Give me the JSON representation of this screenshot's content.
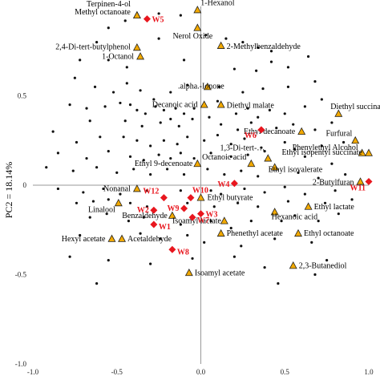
{
  "chart_data": {
    "type": "scatter",
    "ylabel": "PC2 = 18.14%",
    "xlim": [
      -1.0,
      1.0
    ],
    "ylim": [
      -1.0,
      1.0
    ],
    "x_ticks": [
      {
        "value": -1.0,
        "label": "-1.0"
      },
      {
        "value": -0.5,
        "label": "-0.5"
      },
      {
        "value": 0.0,
        "label": "0.0"
      },
      {
        "value": 0.5,
        "label": "0.5"
      },
      {
        "value": 1.0,
        "label": "1.0"
      }
    ],
    "y_ticks": [
      {
        "value": 0.5,
        "label": "0.5"
      },
      {
        "value": 0.0,
        "label": "0"
      },
      {
        "value": -0.5,
        "label": "-0.5"
      },
      {
        "value": -1.0,
        "label": "-1.0"
      }
    ],
    "colors": {
      "sample_marker": "#e8161e",
      "sample_label": "#e8161e",
      "compound_fill": "#f2a900",
      "compound_stroke": "#222222",
      "variable_dot": "#111111",
      "axis": "#999999"
    },
    "samples": [
      {
        "name": "W1",
        "x": -0.28,
        "y": -0.22
      },
      {
        "name": "W2",
        "x": -0.28,
        "y": -0.14
      },
      {
        "name": "W3",
        "x": 0.0,
        "y": -0.16
      },
      {
        "name": "W4",
        "x": 0.2,
        "y": 0.01
      },
      {
        "name": "W5",
        "x": -0.32,
        "y": 0.93
      },
      {
        "name": "W6",
        "x": 0.36,
        "y": 0.31
      },
      {
        "name": "W7",
        "x": -0.05,
        "y": -0.18
      },
      {
        "name": "W8",
        "x": -0.17,
        "y": -0.36
      },
      {
        "name": "W9",
        "x": -0.1,
        "y": -0.13
      },
      {
        "name": "W10",
        "x": -0.06,
        "y": -0.07
      },
      {
        "name": "W11",
        "x": 1.0,
        "y": 0.02
      },
      {
        "name": "W12",
        "x": -0.22,
        "y": -0.07
      }
    ],
    "compounds": [
      {
        "name": "Terpinen-4-ol",
        "x": -0.38,
        "y": 0.95
      },
      {
        "name": "Methyl octanoate",
        "x": -0.38,
        "y": 0.95
      },
      {
        "name": "1-Hexanol",
        "x": -0.02,
        "y": 0.98
      },
      {
        "name": "Nerol Oxide",
        "x": -0.02,
        "y": 0.88
      },
      {
        "name": "2-Methylbenzaldehyde",
        "x": 0.12,
        "y": 0.78
      },
      {
        "name": "2,4-Di-tert-butylphenol",
        "x": -0.38,
        "y": 0.77
      },
      {
        "name": "1-Octanol",
        "x": -0.36,
        "y": 0.72
      },
      {
        "name": ".alpha.-Ionone",
        "x": 0.04,
        "y": 0.55
      },
      {
        "name": "Decanoic acid",
        "x": 0.02,
        "y": 0.45
      },
      {
        "name": "Diethyl malate",
        "x": 0.12,
        "y": 0.45
      },
      {
        "name": "Diethyl succinate",
        "x": 0.82,
        "y": 0.4
      },
      {
        "name": "Ethyl decanoate",
        "x": 0.6,
        "y": 0.3
      },
      {
        "name": "Furfural",
        "x": 0.92,
        "y": 0.25
      },
      {
        "name": "Phenylethyl Alcohol",
        "x": 0.96,
        "y": 0.18
      },
      {
        "name": "Ethyl isopentyl succinate",
        "x": 1.0,
        "y": 0.18
      },
      {
        "name": "1,3-Di-tert-…",
        "x": 0.4,
        "y": 0.15
      },
      {
        "name": "Ethyl 9-decenoate",
        "x": -0.02,
        "y": 0.12
      },
      {
        "name": "Octanoic acid",
        "x": 0.3,
        "y": 0.12
      },
      {
        "name": "Ethyl isovalerate",
        "x": 0.44,
        "y": 0.1
      },
      {
        "name": "2-Butylfuran",
        "x": 0.95,
        "y": 0.02
      },
      {
        "name": "Nonanal",
        "x": -0.38,
        "y": -0.02
      },
      {
        "name": "Linalool",
        "x": -0.49,
        "y": -0.1
      },
      {
        "name": "Ethyl butyrate",
        "x": 0.0,
        "y": -0.07
      },
      {
        "name": "Ethyl lactate",
        "x": 0.64,
        "y": -0.12
      },
      {
        "name": "Benzaldehyde",
        "x": -0.17,
        "y": -0.17
      },
      {
        "name": "Hexanoic acid",
        "x": 0.44,
        "y": -0.15
      },
      {
        "name": "Isoamyl lactate",
        "x": 0.14,
        "y": -0.2
      },
      {
        "name": "Hexyl acetate",
        "x": -0.53,
        "y": -0.3
      },
      {
        "name": "Acetaldehyde",
        "x": -0.47,
        "y": -0.3
      },
      {
        "name": "Phenethyl acetate",
        "x": 0.12,
        "y": -0.27
      },
      {
        "name": "Ethyl octanoate",
        "x": 0.58,
        "y": -0.27
      },
      {
        "name": "Isoamyl acetate",
        "x": -0.07,
        "y": -0.49
      },
      {
        "name": "2,3-Butanediol",
        "x": 0.55,
        "y": -0.45
      }
    ],
    "variables": [
      [
        -0.45,
        0.92
      ],
      [
        -0.25,
        0.96
      ],
      [
        -0.12,
        0.95
      ],
      [
        -0.02,
        0.88
      ],
      [
        0.03,
        0.84
      ],
      [
        0.15,
        0.82
      ],
      [
        0.25,
        0.8
      ],
      [
        0.34,
        0.77
      ],
      [
        0.42,
        0.75
      ],
      [
        -0.55,
        0.88
      ],
      [
        -0.62,
        0.8
      ],
      [
        -0.72,
        0.7
      ],
      [
        -0.55,
        0.7
      ],
      [
        -0.44,
        0.66
      ],
      [
        -0.25,
        0.82
      ],
      [
        -0.1,
        0.7
      ],
      [
        0.2,
        0.65
      ],
      [
        0.33,
        0.64
      ],
      [
        0.42,
        0.69
      ],
      [
        0.52,
        0.66
      ],
      [
        0.64,
        0.72
      ],
      [
        -0.75,
        0.6
      ],
      [
        -0.63,
        0.55
      ],
      [
        -0.52,
        0.52
      ],
      [
        -0.44,
        0.57
      ],
      [
        -0.36,
        0.53
      ],
      [
        -0.28,
        0.48
      ],
      [
        -0.18,
        0.52
      ],
      [
        -0.08,
        0.56
      ],
      [
        0.11,
        0.55
      ],
      [
        0.25,
        0.52
      ],
      [
        0.37,
        0.54
      ],
      [
        0.52,
        0.55
      ],
      [
        0.68,
        0.58
      ],
      [
        -0.78,
        0.45
      ],
      [
        -0.68,
        0.43
      ],
      [
        -0.57,
        0.44
      ],
      [
        -0.48,
        0.46
      ],
      [
        -0.42,
        0.45
      ],
      [
        -0.38,
        0.42
      ],
      [
        -0.33,
        0.4
      ],
      [
        -0.27,
        0.44
      ],
      [
        -0.22,
        0.42
      ],
      [
        -0.15,
        0.43
      ],
      [
        -0.1,
        0.4
      ],
      [
        -0.04,
        0.43
      ],
      [
        0.1,
        0.47
      ],
      [
        0.21,
        0.4
      ],
      [
        0.28,
        0.43
      ],
      [
        0.34,
        0.38
      ],
      [
        0.41,
        0.42
      ],
      [
        0.5,
        0.4
      ],
      [
        0.62,
        0.44
      ],
      [
        0.72,
        0.48
      ],
      [
        -0.66,
        0.36
      ],
      [
        -0.45,
        0.36
      ],
      [
        -0.35,
        0.33
      ],
      [
        -0.24,
        0.35
      ],
      [
        -0.18,
        0.37
      ],
      [
        -0.13,
        0.33
      ],
      [
        -0.05,
        0.37
      ],
      [
        0.05,
        0.38
      ],
      [
        0.12,
        0.34
      ],
      [
        0.22,
        0.31
      ],
      [
        0.3,
        0.35
      ],
      [
        0.45,
        0.32
      ],
      [
        0.55,
        0.34
      ],
      [
        0.68,
        0.31
      ],
      [
        0.78,
        0.35
      ],
      [
        -0.88,
        0.3
      ],
      [
        -0.74,
        0.24
      ],
      [
        -0.6,
        0.27
      ],
      [
        -0.46,
        0.27
      ],
      [
        -0.38,
        0.25
      ],
      [
        -0.3,
        0.22
      ],
      [
        -0.22,
        0.25
      ],
      [
        -0.14,
        0.23
      ],
      [
        -0.08,
        0.27
      ],
      [
        0.02,
        0.25
      ],
      [
        0.1,
        0.28
      ],
      [
        0.18,
        0.23
      ],
      [
        0.26,
        0.26
      ],
      [
        0.36,
        0.21
      ],
      [
        0.5,
        0.24
      ],
      [
        0.56,
        0.2
      ],
      [
        0.72,
        0.22
      ],
      [
        0.85,
        0.24
      ],
      [
        -0.85,
        0.18
      ],
      [
        -0.68,
        0.15
      ],
      [
        -0.55,
        0.19
      ],
      [
        -0.42,
        0.16
      ],
      [
        -0.34,
        0.14
      ],
      [
        -0.25,
        0.17
      ],
      [
        -0.18,
        0.15
      ],
      [
        -0.12,
        0.18
      ],
      [
        -0.04,
        0.15
      ],
      [
        0.06,
        0.18
      ],
      [
        0.18,
        0.16
      ],
      [
        0.28,
        0.17
      ],
      [
        0.38,
        0.19
      ],
      [
        0.62,
        0.16
      ],
      [
        0.78,
        0.12
      ],
      [
        -0.92,
        0.1
      ],
      [
        -0.76,
        0.08
      ],
      [
        -0.62,
        0.1
      ],
      [
        -0.5,
        0.07
      ],
      [
        -0.4,
        0.09
      ],
      [
        -0.3,
        0.06
      ],
      [
        -0.2,
        0.09
      ],
      [
        -0.1,
        0.06
      ],
      [
        0.04,
        0.09
      ],
      [
        0.14,
        0.06
      ],
      [
        0.24,
        0.08
      ],
      [
        0.34,
        0.05
      ],
      [
        0.58,
        0.07
      ],
      [
        0.7,
        0.04
      ],
      [
        0.86,
        0.06
      ],
      [
        -0.85,
        -0.02
      ],
      [
        -0.7,
        -0.04
      ],
      [
        -0.58,
        -0.02
      ],
      [
        -0.48,
        -0.05
      ],
      [
        -0.32,
        -0.03
      ],
      [
        -0.12,
        -0.03
      ],
      [
        0.06,
        -0.03
      ],
      [
        0.12,
        -0.05
      ],
      [
        0.26,
        -0.02
      ],
      [
        0.38,
        -0.04
      ],
      [
        0.5,
        -0.01
      ],
      [
        0.62,
        -0.05
      ],
      [
        0.8,
        -0.03
      ],
      [
        -0.74,
        -0.1
      ],
      [
        -0.64,
        -0.09
      ],
      [
        -0.55,
        -0.08
      ],
      [
        -0.42,
        -0.1
      ],
      [
        -0.32,
        -0.12
      ],
      [
        -0.08,
        -0.1
      ],
      [
        0.08,
        -0.12
      ],
      [
        0.22,
        -0.1
      ],
      [
        0.34,
        -0.12
      ],
      [
        0.52,
        -0.09
      ],
      [
        0.74,
        -0.1
      ],
      [
        0.9,
        -0.08
      ],
      [
        -0.66,
        -0.18
      ],
      [
        -0.56,
        -0.16
      ],
      [
        -0.43,
        -0.2
      ],
      [
        -0.34,
        -0.18
      ],
      [
        -0.12,
        -0.22
      ],
      [
        0.06,
        -0.2
      ],
      [
        0.18,
        -0.24
      ],
      [
        0.3,
        -0.2
      ],
      [
        0.48,
        -0.2
      ],
      [
        0.56,
        -0.17
      ],
      [
        0.7,
        -0.2
      ],
      [
        0.82,
        -0.16
      ],
      [
        -0.72,
        -0.28
      ],
      [
        -0.36,
        -0.27
      ],
      [
        -0.24,
        -0.3
      ],
      [
        -0.08,
        -0.28
      ],
      [
        0.02,
        -0.32
      ],
      [
        0.24,
        -0.34
      ],
      [
        0.44,
        -0.3
      ],
      [
        0.66,
        -0.32
      ],
      [
        -0.78,
        -0.4
      ],
      [
        -0.55,
        -0.42
      ],
      [
        -0.3,
        -0.44
      ],
      [
        -0.05,
        -0.41
      ],
      [
        0.2,
        -0.4
      ],
      [
        0.38,
        -0.46
      ],
      [
        0.75,
        -0.42
      ],
      [
        -0.62,
        -0.55
      ],
      [
        0.46,
        -0.55
      ],
      [
        0.68,
        -0.5
      ]
    ]
  }
}
